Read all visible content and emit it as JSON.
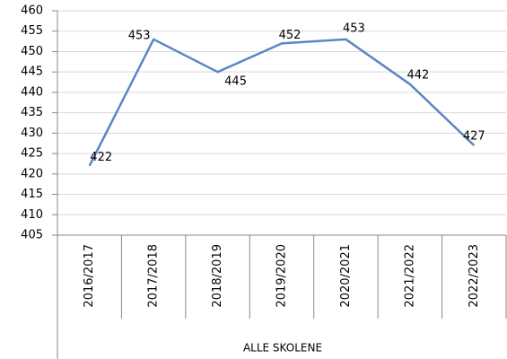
{
  "chart_data": {
    "type": "line",
    "categories": [
      "2016/2017",
      "2017/2018",
      "2018/2019",
      "2019/2020",
      "2020/2021",
      "2021/2022",
      "2022/2023"
    ],
    "values": [
      422,
      453,
      445,
      452,
      453,
      442,
      427
    ],
    "color": "#5b86c5",
    "category_group": "ALLE SKOLENE",
    "ylim": [
      405,
      460
    ],
    "yticks": [
      405,
      410,
      415,
      420,
      425,
      430,
      435,
      440,
      445,
      450,
      455,
      460
    ],
    "grid": true
  }
}
